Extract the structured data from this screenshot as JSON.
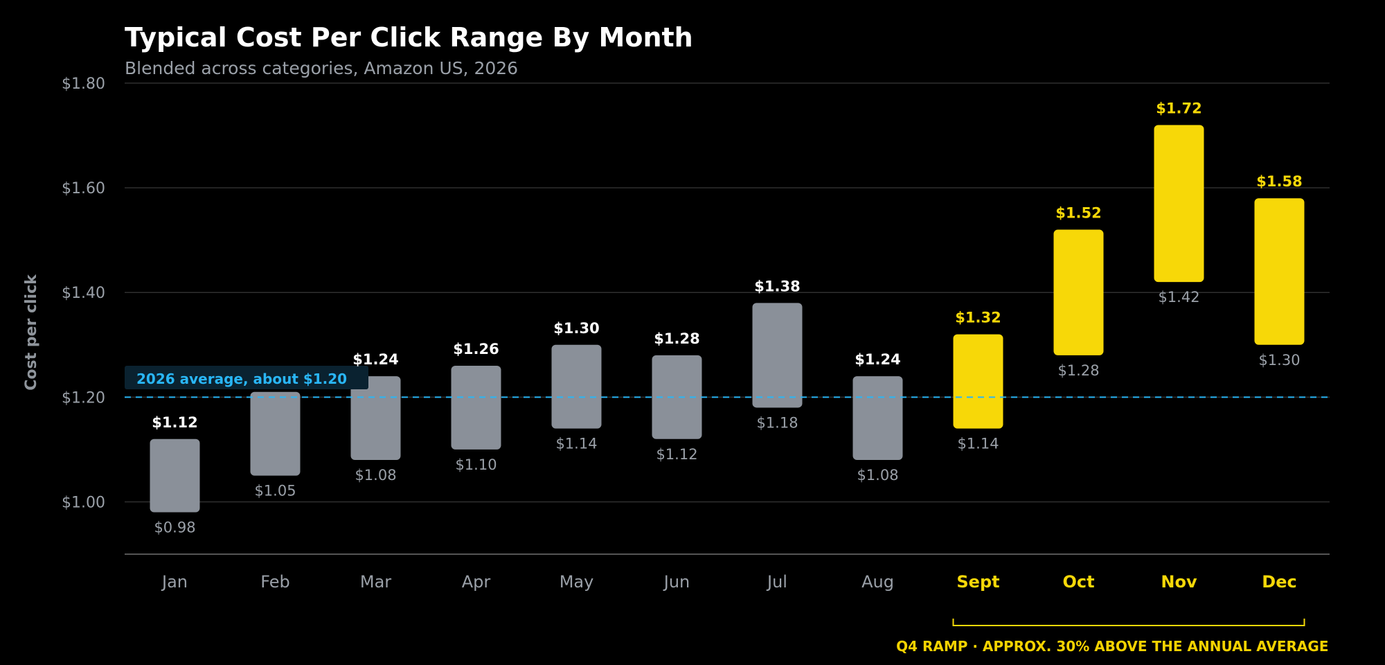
{
  "colors": {
    "background": "#000000",
    "bar_regular": "#8a9099",
    "bar_highlight": "#f7d808",
    "grid": "#2f2f2f",
    "average_line": "#29b6f6",
    "label_muted": "#9aa0a8",
    "label_white": "#ffffff"
  },
  "chart_data": {
    "type": "bar",
    "subtype": "floating-range",
    "title": "Typical Cost Per Click Range By Month",
    "subtitle": "Blended across categories, Amazon US, 2026",
    "ylabel": "Cost per click",
    "xlabel": "",
    "ylim": [
      0.9,
      1.8
    ],
    "yticks": [
      1.0,
      1.2,
      1.4,
      1.6,
      1.8
    ],
    "ytick_labels": [
      "$1.00",
      "$1.20",
      "$1.40",
      "$1.60",
      "$1.80"
    ],
    "grid": true,
    "categories": [
      "Jan",
      "Feb",
      "Mar",
      "Apr",
      "May",
      "Jun",
      "Jul",
      "Aug",
      "Sept",
      "Oct",
      "Nov",
      "Dec"
    ],
    "low": [
      0.98,
      1.05,
      1.08,
      1.1,
      1.14,
      1.12,
      1.18,
      1.08,
      1.14,
      1.28,
      1.42,
      1.3
    ],
    "high": [
      1.12,
      1.21,
      1.24,
      1.26,
      1.3,
      1.28,
      1.38,
      1.24,
      1.32,
      1.52,
      1.72,
      1.58
    ],
    "low_labels": [
      "$0.98",
      "$1.05",
      "$1.08",
      "$1.10",
      "$1.14",
      "$1.12",
      "$1.18",
      "$1.08",
      "$1.14",
      "$1.28",
      "$1.42",
      "$1.30"
    ],
    "high_labels": [
      "$1.12",
      "",
      "$1.24",
      "$1.26",
      "$1.30",
      "$1.28",
      "$1.38",
      "$1.24",
      "$1.32",
      "$1.52",
      "$1.72",
      "$1.58"
    ],
    "highlighted": [
      false,
      false,
      false,
      false,
      false,
      false,
      false,
      false,
      true,
      true,
      true,
      true
    ],
    "average": {
      "value": 1.2,
      "label": "2026 average, about $1.20"
    },
    "annotation": {
      "text": "Q4 RAMP · APPROX. 30% ABOVE THE ANNUAL AVERAGE",
      "from_category": "Sept",
      "to_category": "Dec"
    }
  }
}
